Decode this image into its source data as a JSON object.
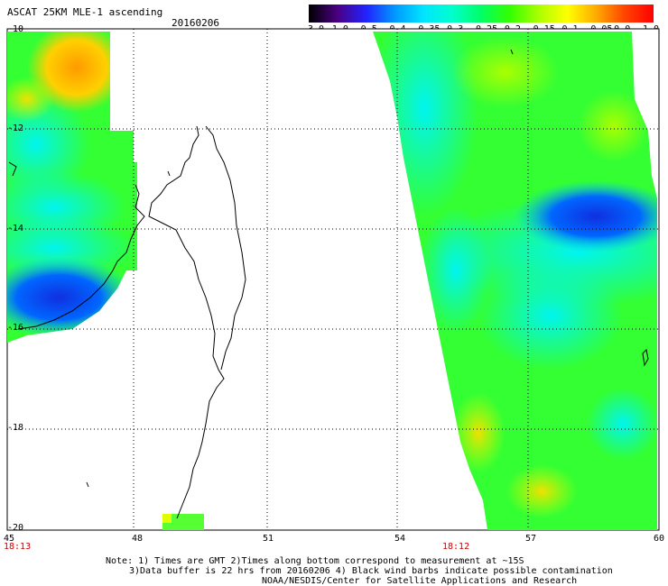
{
  "header": {
    "title": "ASCAT 25KM MLE-1 ascending",
    "date": "20160206"
  },
  "colorbar": {
    "labels": [
      "-3.0",
      "-1.0",
      "-0.5",
      "-0.4",
      "-0.35",
      "-0.3",
      "-0.25",
      "-0.2",
      "-0.15",
      "-0.1",
      "-0.05",
      "0.0",
      "1.0"
    ],
    "colors": [
      "#000000",
      "#4b0082",
      "#2222ff",
      "#0099ff",
      "#00e5ff",
      "#00ffcc",
      "#00ff66",
      "#33ff00",
      "#aaff00",
      "#ffff00",
      "#ffaa00",
      "#ff4400",
      "#ff0000"
    ]
  },
  "axes": {
    "lat_labels": [
      "-10",
      "-12",
      "-14",
      "-16",
      "-18",
      "-20"
    ],
    "lon_labels": [
      "45",
      "48",
      "51",
      "54",
      "57",
      "60"
    ]
  },
  "times": {
    "left": "18:13",
    "right": "18:12"
  },
  "footer": {
    "note_line1": "Note: 1) Times are GMT 2)Times along bottom correspond to measurement at ~15S",
    "note_line2": "3)Data buffer is 22 hrs from 20160206 4) Black wind barbs indicate possible contamination",
    "credit": "NOAA/NESDIS/Center for Satellite Applications and Research"
  }
}
